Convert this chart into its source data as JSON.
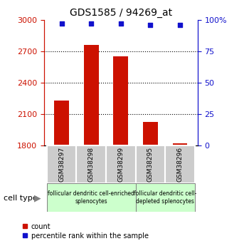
{
  "title": "GDS1585 / 94269_at",
  "samples": [
    "GSM38297",
    "GSM38298",
    "GSM38299",
    "GSM38295",
    "GSM38296"
  ],
  "counts": [
    2230,
    2760,
    2650,
    2020,
    1820
  ],
  "percentiles": [
    97,
    97,
    97,
    96,
    96
  ],
  "ylim_left": [
    1800,
    3000
  ],
  "ylim_right": [
    0,
    100
  ],
  "yticks_left": [
    1800,
    2100,
    2400,
    2700,
    3000
  ],
  "yticks_right": [
    0,
    25,
    50,
    75,
    100
  ],
  "bar_color": "#cc1100",
  "dot_color": "#1111cc",
  "bar_width": 0.5,
  "group1_label": "follicular dendritic cell-enriched\nsplenocytes",
  "group2_label": "follicular dendritic cell-\ndepleted splenocytes",
  "cell_type_label": "cell type",
  "legend_count": "count",
  "legend_percentile": "percentile rank within the sample",
  "group_box_color": "#ccffcc",
  "tick_box_color": "#cccccc"
}
